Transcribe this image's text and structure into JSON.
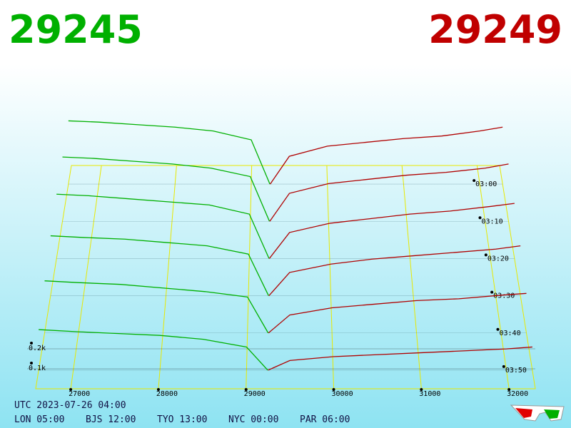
{
  "chart_data": {
    "type": "depth3d",
    "bid_price": 29245,
    "ask_price": 29249,
    "xlim": [
      26600,
      32300
    ],
    "xticks": [
      27000,
      28000,
      29000,
      30000,
      31000,
      32000
    ],
    "tlim": [
      175,
      235
    ],
    "tticks": [
      {
        "value": 180,
        "label": "03:00"
      },
      {
        "value": 190,
        "label": "03:10"
      },
      {
        "value": 200,
        "label": "03:20"
      },
      {
        "value": 210,
        "label": "03:30"
      },
      {
        "value": 220,
        "label": "03:40"
      },
      {
        "value": 230,
        "label": "03:50"
      }
    ],
    "zticks": [
      {
        "value": 0.1,
        "label": "0.1k"
      },
      {
        "value": 0.2,
        "label": "0.2k"
      }
    ],
    "bid": {
      "color": "#00b000",
      "x": [
        26600,
        27000,
        27500,
        28000,
        28500,
        29000,
        29245
      ],
      "series": [
        {
          "t": 180,
          "values": [
            0.5,
            0.49,
            0.47,
            0.45,
            0.42,
            0.35,
            0
          ]
        },
        {
          "t": 190,
          "values": [
            0.46,
            0.45,
            0.43,
            0.41,
            0.38,
            0.32,
            0
          ]
        },
        {
          "t": 200,
          "values": [
            0.42,
            0.41,
            0.39,
            0.37,
            0.35,
            0.29,
            0
          ]
        },
        {
          "t": 210,
          "values": [
            0.36,
            0.35,
            0.34,
            0.32,
            0.3,
            0.25,
            0
          ]
        },
        {
          "t": 220,
          "values": [
            0.29,
            0.28,
            0.27,
            0.25,
            0.23,
            0.2,
            0
          ]
        },
        {
          "t": 230,
          "values": [
            0.21,
            0.2,
            0.19,
            0.18,
            0.16,
            0.12,
            0
          ]
        }
      ]
    },
    "ask": {
      "color": "#b00000",
      "x": [
        29249,
        29500,
        30000,
        30500,
        31000,
        31500,
        32000,
        32300
      ],
      "series": [
        {
          "t": 180,
          "values": [
            0,
            0.22,
            0.3,
            0.33,
            0.36,
            0.38,
            0.42,
            0.45
          ]
        },
        {
          "t": 190,
          "values": [
            0,
            0.2,
            0.27,
            0.3,
            0.33,
            0.35,
            0.38,
            0.41
          ]
        },
        {
          "t": 200,
          "values": [
            0,
            0.17,
            0.23,
            0.26,
            0.29,
            0.31,
            0.34,
            0.36
          ]
        },
        {
          "t": 210,
          "values": [
            0,
            0.14,
            0.19,
            0.22,
            0.24,
            0.26,
            0.28,
            0.3
          ]
        },
        {
          "t": 220,
          "values": [
            0,
            0.1,
            0.14,
            0.16,
            0.18,
            0.19,
            0.21,
            0.22
          ]
        },
        {
          "t": 230,
          "values": [
            0,
            0.05,
            0.07,
            0.08,
            0.09,
            0.1,
            0.11,
            0.12
          ]
        }
      ]
    },
    "footer": {
      "utc": "UTC 2023-07-26 04:00",
      "cities": [
        "LON 05:00",
        "BJS 12:00",
        "TYO 13:00",
        "NYC 00:00",
        "PAR 06:00"
      ]
    }
  }
}
